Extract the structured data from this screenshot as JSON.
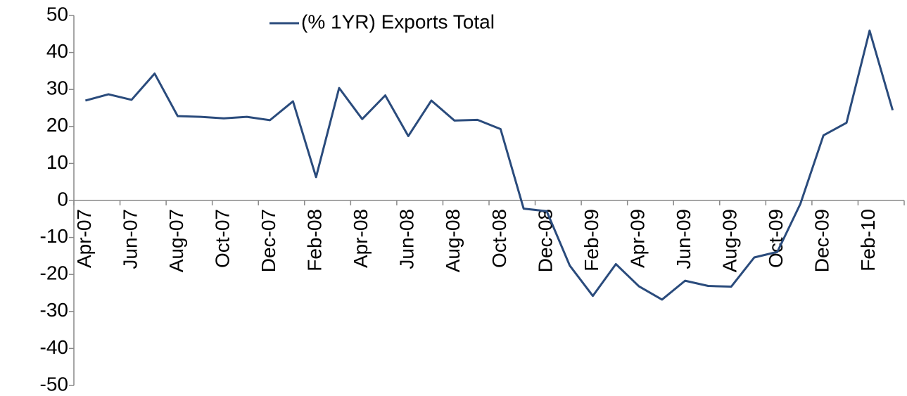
{
  "chart_data": {
    "type": "line",
    "categories": [
      "Apr-07",
      null,
      "Jun-07",
      null,
      "Aug-07",
      null,
      "Oct-07",
      null,
      "Dec-07",
      null,
      "Feb-08",
      null,
      "Apr-08",
      null,
      "Jun-08",
      null,
      "Aug-08",
      null,
      "Oct-08",
      null,
      "Dec-08",
      null,
      "Feb-09",
      null,
      "Apr-09",
      null,
      "Jun-09",
      null,
      "Aug-09",
      null,
      "Oct-09",
      null,
      "Dec-09",
      null,
      "Feb-10",
      null
    ],
    "series": [
      {
        "name": "(% 1YR) Exports Total",
        "color": "#2a4b7c",
        "values": [
          27,
          28.7,
          27.2,
          34.3,
          22.8,
          22.6,
          22.2,
          22.6,
          21.7,
          26.8,
          6.3,
          30.4,
          22,
          28.4,
          17.4,
          27,
          21.6,
          21.8,
          19.3,
          -2.2,
          -2.9,
          -17.6,
          -25.8,
          -17.2,
          -23.2,
          -26.8,
          -21.7,
          -23.1,
          -23.3,
          -15.4,
          -13.9,
          -0.9,
          17.6,
          21,
          45.9,
          24.4
        ]
      }
    ],
    "ylim": [
      -50,
      50
    ],
    "yticks": [
      -50,
      -40,
      -30,
      -20,
      -10,
      0,
      10,
      20,
      30,
      40,
      50
    ],
    "legend": "top"
  }
}
